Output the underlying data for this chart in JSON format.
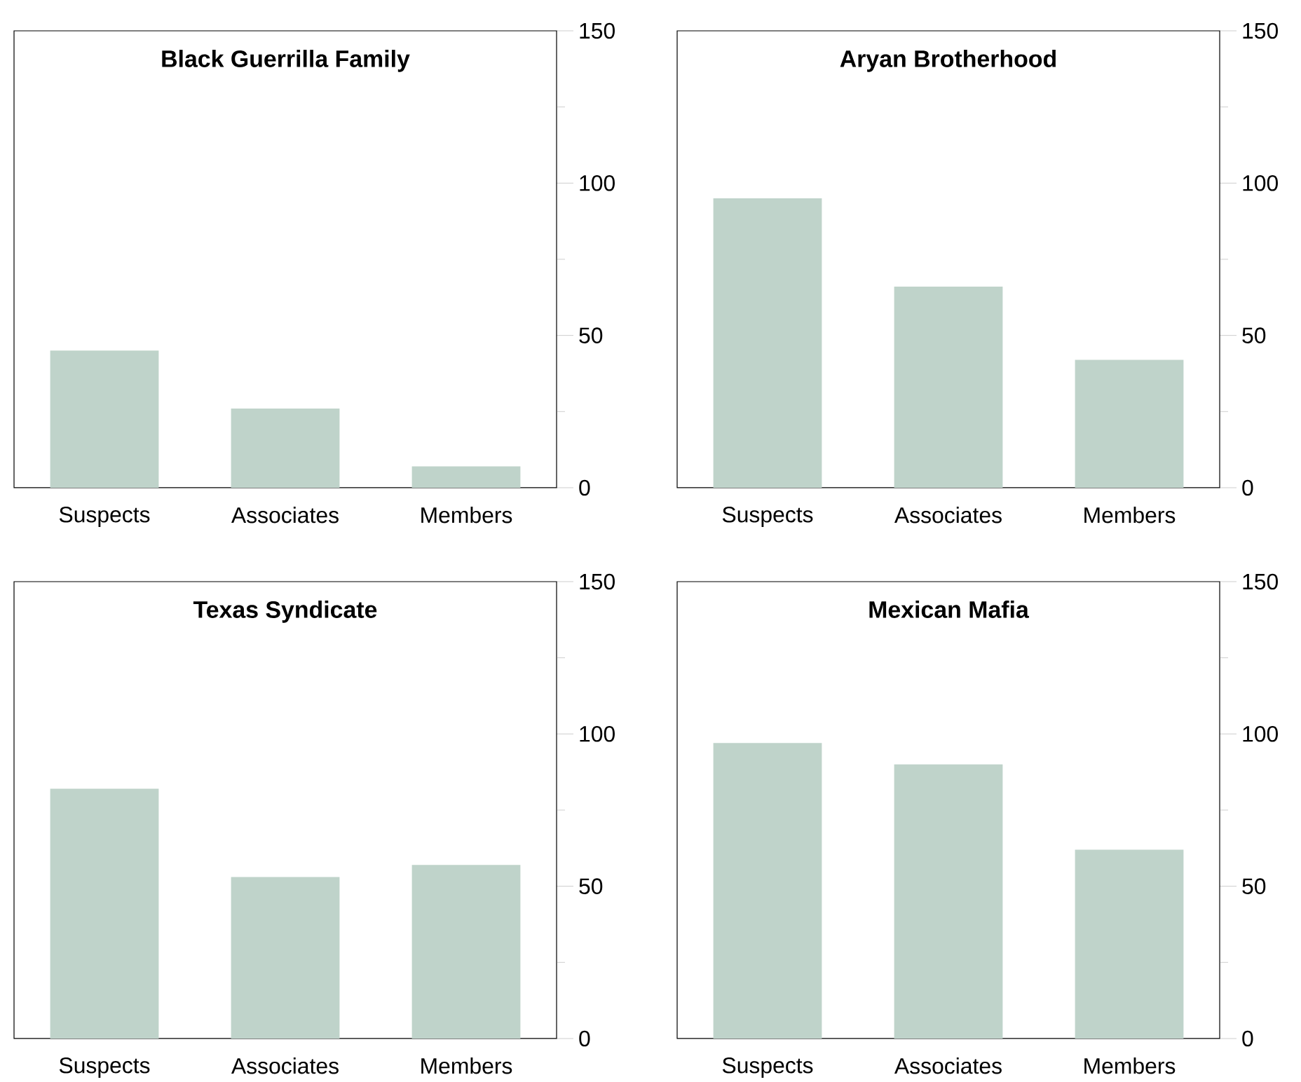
{
  "chart_data": [
    {
      "type": "bar",
      "title": "Black Guerrilla Family",
      "categories": [
        "Suspects",
        "Associates",
        "Members"
      ],
      "values": [
        45,
        26,
        7
      ],
      "color": "#bfd3ca",
      "ylim": [
        0,
        150
      ],
      "yticks": [
        0,
        {
          "value": 25,
          "label": null
        },
        50,
        {
          "value": 75,
          "label": null
        },
        100,
        {
          "value": 125,
          "label": null
        },
        150
      ],
      "grid": false
    },
    {
      "type": "bar",
      "title": "Aryan Brotherhood",
      "categories": [
        "Suspects",
        "Associates",
        "Members"
      ],
      "values": [
        95,
        66,
        42
      ],
      "color": "#bfd3ca",
      "ylim": [
        0,
        150
      ],
      "yticks": [
        0,
        {
          "value": 25,
          "label": null
        },
        50,
        {
          "value": 75,
          "label": null
        },
        100,
        {
          "value": 125,
          "label": null
        },
        150
      ],
      "grid": false
    },
    {
      "type": "bar",
      "title": "Texas Syndicate",
      "categories": [
        "Suspects",
        "Associates",
        "Members"
      ],
      "values": [
        82,
        53,
        57
      ],
      "color": "#bfd3ca",
      "ylim": [
        0,
        150
      ],
      "yticks": [
        0,
        {
          "value": 25,
          "label": null
        },
        50,
        {
          "value": 75,
          "label": null
        },
        100,
        {
          "value": 125,
          "label": null
        },
        150
      ],
      "grid": false
    },
    {
      "type": "bar",
      "title": "Mexican Mafia",
      "categories": [
        "Suspects",
        "Associates",
        "Members"
      ],
      "values": [
        97,
        90,
        62
      ],
      "color": "#bfd3ca",
      "ylim": [
        0,
        150
      ],
      "yticks": [
        0,
        {
          "value": 25,
          "label": null
        },
        50,
        {
          "value": 75,
          "label": null
        },
        100,
        {
          "value": 125,
          "label": null
        },
        150
      ],
      "grid": false
    }
  ]
}
